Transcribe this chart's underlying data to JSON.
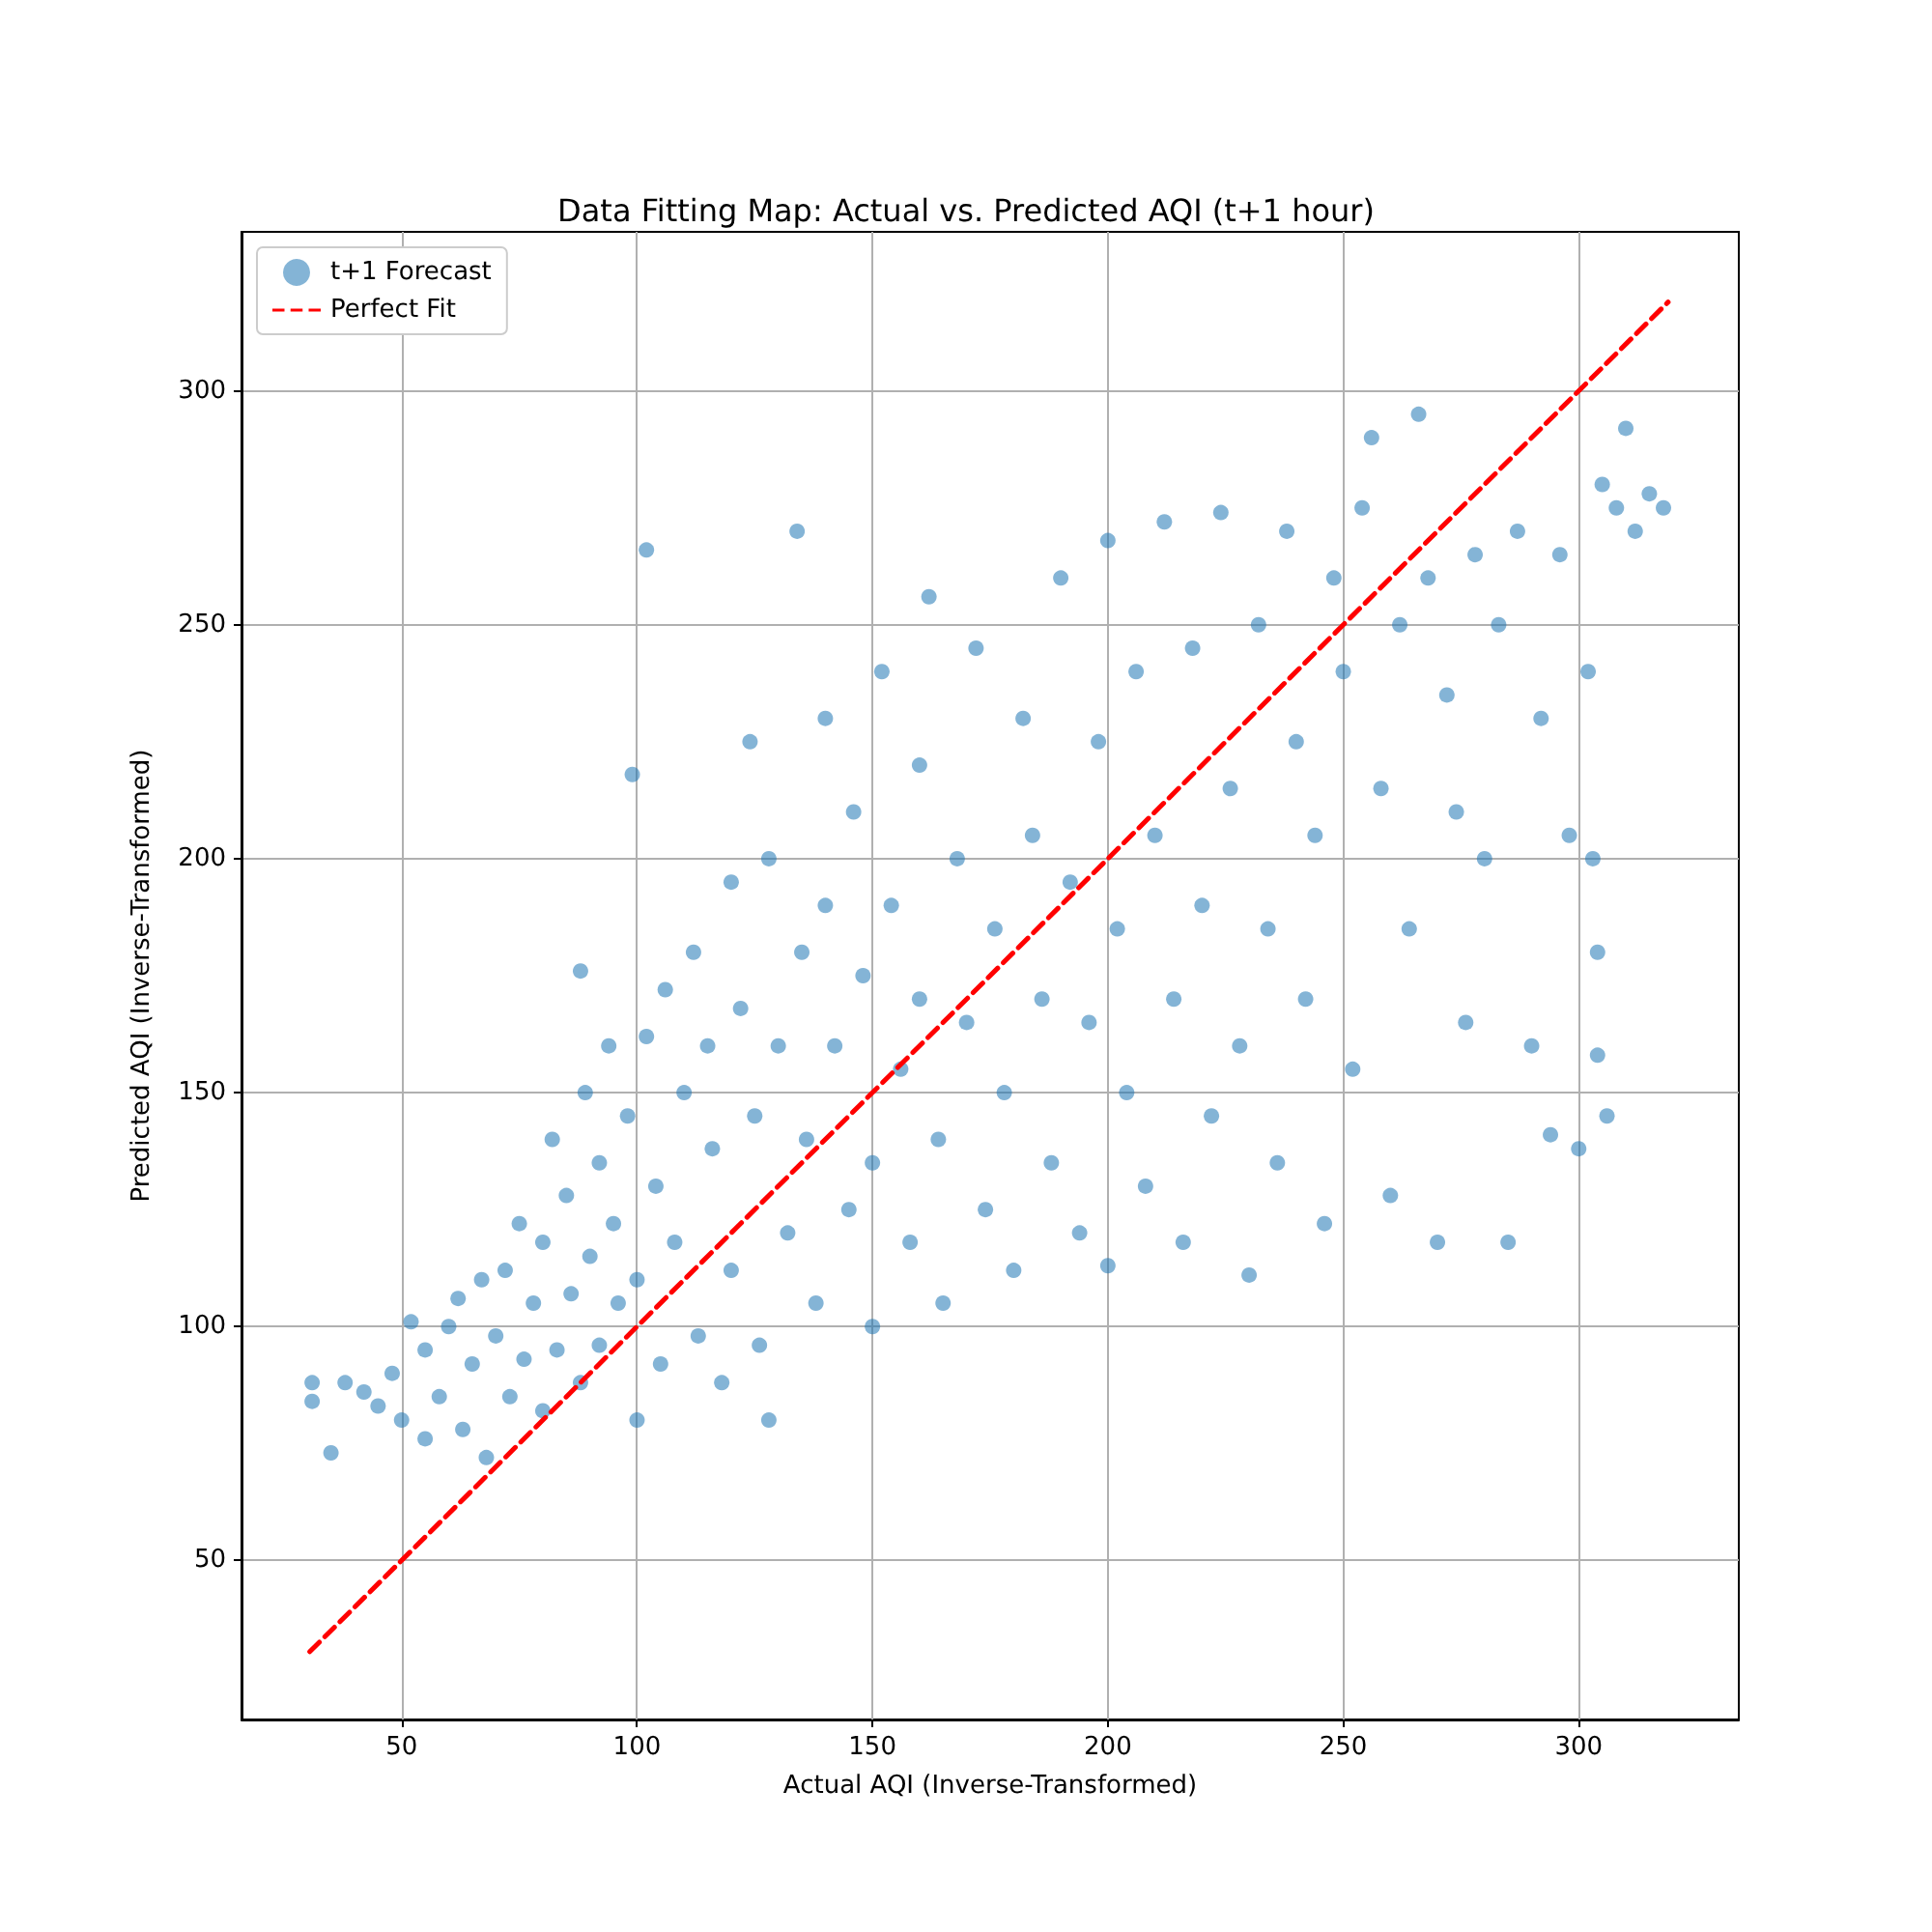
{
  "chart_data": {
    "type": "scatter",
    "title": "Data Fitting Map: Actual vs. Predicted AQI (t+1 hour)",
    "xlabel": "Actual AQI (Inverse-Transformed)",
    "ylabel": "Predicted AQI (Inverse-Transformed)",
    "xlim": [
      16,
      334
    ],
    "ylim": [
      16,
      334
    ],
    "xticks": [
      50,
      100,
      150,
      200,
      250,
      300
    ],
    "yticks": [
      50,
      100,
      150,
      200,
      250,
      300
    ],
    "grid": true,
    "legend": "top left",
    "series": [
      {
        "name": "t+1 Forecast",
        "marker": "circle",
        "color": "#1f77b4",
        "x": [
          31,
          31,
          35,
          38,
          42,
          45,
          48,
          50,
          52,
          55,
          55,
          58,
          60,
          62,
          63,
          65,
          67,
          68,
          70,
          72,
          73,
          75,
          76,
          78,
          80,
          80,
          82,
          83,
          85,
          86,
          88,
          88,
          89,
          90,
          92,
          92,
          94,
          95,
          96,
          98,
          99,
          100,
          100,
          102,
          102,
          104,
          105,
          106,
          108,
          110,
          112,
          113,
          115,
          116,
          118,
          120,
          120,
          122,
          124,
          125,
          126,
          128,
          128,
          130,
          132,
          134,
          135,
          136,
          138,
          140,
          140,
          142,
          145,
          146,
          148,
          150,
          150,
          152,
          154,
          156,
          158,
          160,
          160,
          162,
          164,
          165,
          168,
          170,
          172,
          174,
          176,
          178,
          180,
          182,
          184,
          186,
          188,
          190,
          192,
          194,
          196,
          198,
          200,
          200,
          202,
          204,
          206,
          208,
          210,
          212,
          214,
          216,
          218,
          220,
          222,
          224,
          226,
          228,
          230,
          232,
          234,
          236,
          238,
          240,
          242,
          244,
          246,
          248,
          250,
          252,
          254,
          256,
          258,
          260,
          262,
          264,
          266,
          268,
          270,
          272,
          274,
          276,
          278,
          280,
          283,
          285,
          287,
          290,
          292,
          294,
          296,
          298,
          300,
          302,
          303,
          304,
          304,
          305,
          306,
          308,
          310,
          312,
          315,
          318
        ],
        "values": [
          88,
          84,
          73,
          88,
          86,
          83,
          90,
          80,
          101,
          95,
          76,
          85,
          100,
          106,
          78,
          92,
          110,
          72,
          98,
          112,
          85,
          122,
          93,
          105,
          118,
          82,
          140,
          95,
          128,
          107,
          176,
          88,
          150,
          115,
          135,
          96,
          160,
          122,
          105,
          145,
          218,
          110,
          80,
          266,
          162,
          130,
          92,
          172,
          118,
          150,
          180,
          98,
          160,
          138,
          88,
          195,
          112,
          168,
          225,
          145,
          96,
          200,
          80,
          160,
          120,
          270,
          180,
          140,
          105,
          230,
          190,
          160,
          125,
          210,
          175,
          135,
          100,
          240,
          190,
          155,
          118,
          220,
          170,
          256,
          140,
          105,
          200,
          165,
          245,
          125,
          185,
          150,
          112,
          230,
          205,
          170,
          135,
          260,
          195,
          120,
          165,
          225,
          113,
          268,
          185,
          150,
          240,
          130,
          205,
          272,
          170,
          118,
          245,
          190,
          145,
          274,
          215,
          160,
          111,
          250,
          185,
          135,
          270,
          225,
          170,
          205,
          122,
          260,
          240,
          155,
          275,
          290,
          215,
          128,
          250,
          185,
          295,
          260,
          118,
          235,
          210,
          165,
          265,
          200,
          250,
          118,
          270,
          160,
          230,
          141,
          265,
          205,
          138,
          240,
          200,
          180,
          158,
          280,
          145,
          275,
          292,
          270,
          278,
          275
        ]
      },
      {
        "name": "Perfect Fit",
        "type": "line",
        "color": "#ff0000",
        "line_style": "dashed",
        "x": [
          30.5,
          319
        ],
        "values": [
          30.5,
          319
        ]
      }
    ]
  }
}
